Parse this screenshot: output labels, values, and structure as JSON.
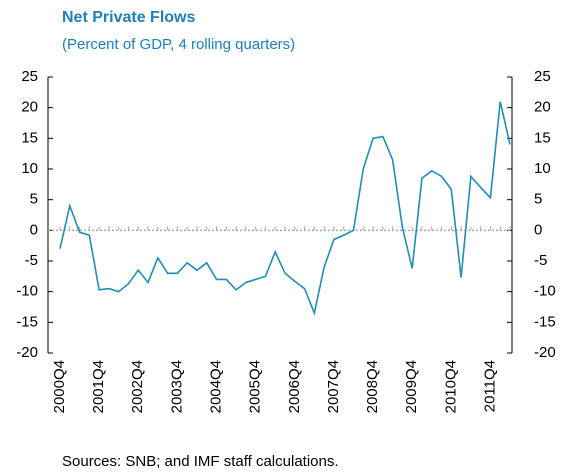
{
  "chart_data": {
    "type": "line",
    "title": "Net Private Flows",
    "subtitle": "(Percent of GDP, 4 rolling quarters)",
    "source": "Sources: SNB; and IMF staff calculations.",
    "categories": [
      "2000Q4",
      null,
      null,
      null,
      "2001Q4",
      null,
      null,
      null,
      "2002Q4",
      null,
      null,
      null,
      "2003Q4",
      null,
      null,
      null,
      "2004Q4",
      null,
      null,
      null,
      "2005Q4",
      null,
      null,
      null,
      "2006Q4",
      null,
      null,
      null,
      "2007Q4",
      null,
      null,
      null,
      "2008Q4",
      null,
      null,
      null,
      "2009Q4",
      null,
      null,
      null,
      "2010Q4",
      null,
      null,
      null,
      "2011Q4",
      null,
      null
    ],
    "series": [
      {
        "name": "Net Private Flows",
        "color": "#1f8fb3",
        "values": [
          -3,
          4,
          -0.3,
          -0.8,
          -9.7,
          -9.5,
          -10,
          -8.7,
          -6.5,
          -8.5,
          -4.5,
          -7,
          -7,
          -5.3,
          -6.5,
          -5.3,
          -8,
          -8,
          -9.7,
          -8.5,
          -8,
          -7.5,
          -3.5,
          -7,
          -8.3,
          -9.5,
          -13.5,
          -6,
          -1.5,
          -0.8,
          0,
          10,
          15,
          15.3,
          11.5,
          0.5,
          -6.2,
          8.5,
          9.7,
          8.8,
          6.7,
          -7.7,
          8.8,
          7,
          5.3,
          21,
          14
        ]
      }
    ],
    "ylim": [
      -20,
      25
    ],
    "yticks": [
      -20,
      -15,
      -10,
      -5,
      0,
      5,
      10,
      15,
      20,
      25
    ],
    "y2lim": [
      -20,
      25
    ],
    "y2ticks": [
      -20,
      -15,
      -10,
      -5,
      0,
      5,
      10,
      15,
      20,
      25
    ],
    "zero_line_color": "#aaaaaa"
  }
}
